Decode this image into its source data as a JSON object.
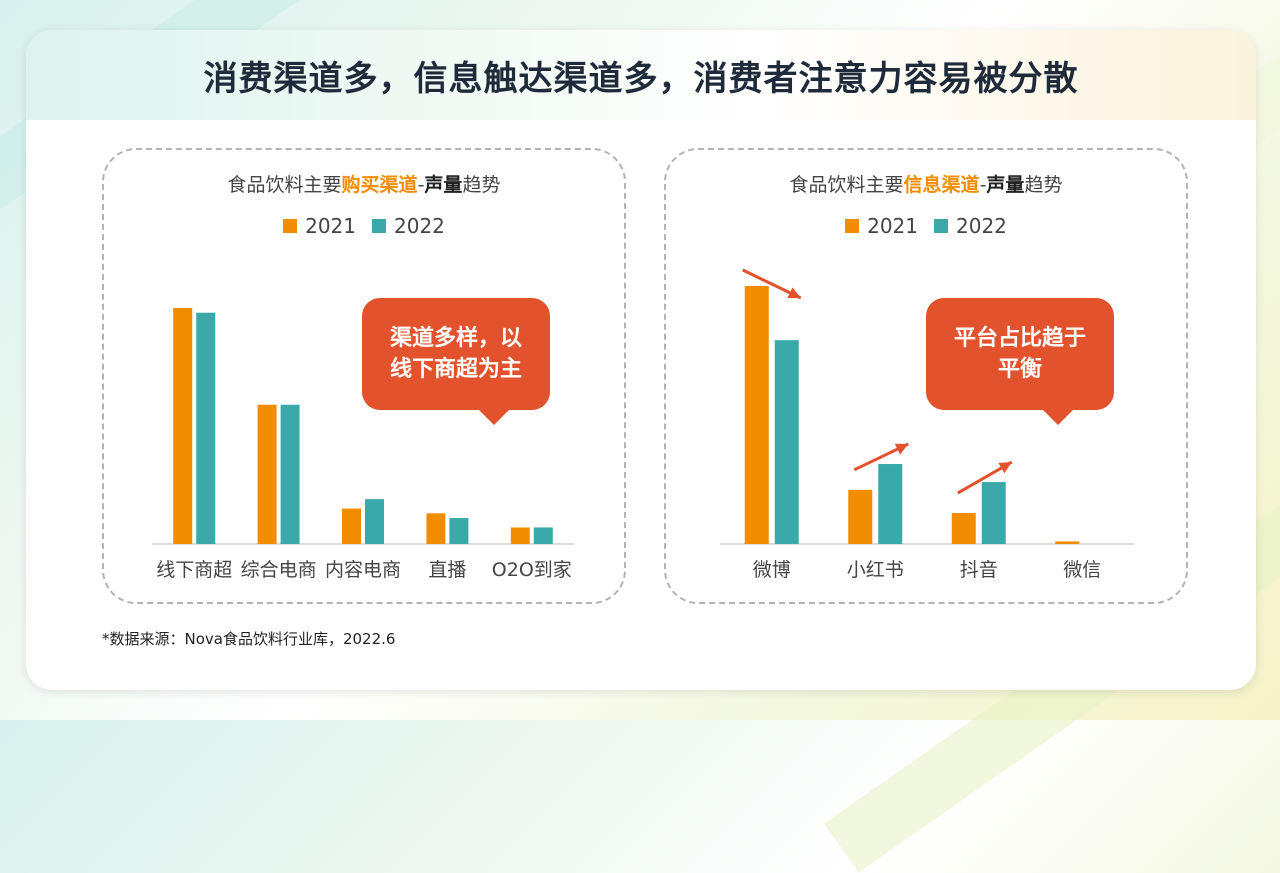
{
  "title": "消费渠道多，信息触达渠道多，消费者注意力容易被分散",
  "colors": {
    "y2021": "#f28c00",
    "y2022": "#3ba9aa",
    "callout": "#e2532d",
    "arrow": "#e2532d"
  },
  "left_panel": {
    "title_prefix": "食品饮料主要",
    "title_highlight": "购买渠道",
    "title_dash": "-",
    "title_suffix_bold": "声量",
    "title_suffix": "趋势",
    "callout_line1": "渠道多样，以",
    "callout_line2": "线下商超为主"
  },
  "right_panel": {
    "title_prefix": "食品饮料主要",
    "title_highlight": "信息渠道",
    "title_dash": "-",
    "title_suffix_bold": "声量",
    "title_suffix": "趋势",
    "callout_line1": "平台占比趋于",
    "callout_line2": "平衡"
  },
  "legend": {
    "series1": "2021",
    "series2": "2022"
  },
  "source": "*数据来源：Nova食品饮料行业库，2022.6",
  "chart_data": [
    {
      "type": "bar",
      "title": "食品饮料主要购买渠道-声量趋势",
      "categories": [
        "线下商超",
        "综合电商",
        "内容电商",
        "直播",
        "O2O到家"
      ],
      "series": [
        {
          "name": "2021",
          "values": [
            100,
            59,
            15,
            13,
            7
          ]
        },
        {
          "name": "2022",
          "values": [
            98,
            59,
            19,
            11,
            7
          ]
        }
      ],
      "ylim": [
        0,
        100
      ],
      "grid": false,
      "legend": "top"
    },
    {
      "type": "bar",
      "title": "食品饮料主要信息渠道-声量趋势",
      "categories": [
        "微博",
        "小红书",
        "抖音",
        "微信"
      ],
      "series": [
        {
          "name": "2021",
          "values": [
            100,
            21,
            12,
            1
          ]
        },
        {
          "name": "2022",
          "values": [
            79,
            31,
            24,
            0
          ]
        }
      ],
      "ylim": [
        0,
        100
      ],
      "grid": false,
      "legend": "top"
    }
  ]
}
